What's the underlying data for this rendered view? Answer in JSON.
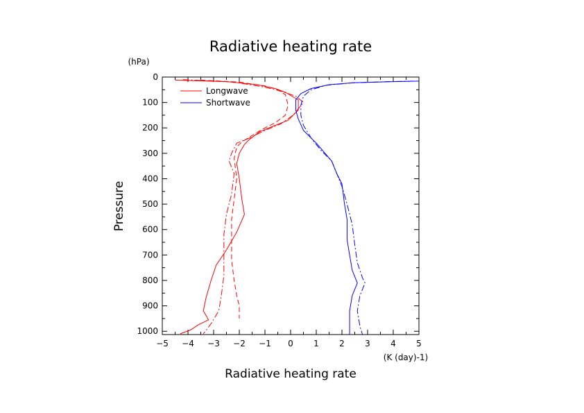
{
  "chart_data": {
    "type": "line",
    "title": "Radiative heating rate",
    "xlabel": "Radiative heating rate",
    "x_unit": "(K (day)-1)",
    "ylabel": "Pressure",
    "y_unit": "(hPa)",
    "xlim": [
      -5,
      5
    ],
    "ylim": [
      0,
      1013
    ],
    "y_inverted": true,
    "x_ticks": [
      -5,
      -4,
      -3,
      -2,
      -1,
      0,
      1,
      2,
      3,
      4,
      5
    ],
    "y_ticks": [
      0,
      100,
      200,
      300,
      400,
      500,
      600,
      700,
      800,
      900,
      1000
    ],
    "grid": false,
    "legend_position": "top-left",
    "legend": [
      {
        "label": "Longwave",
        "color": "#ff0000"
      },
      {
        "label": "Shortwave",
        "color": "#0000ff"
      }
    ],
    "series": [
      {
        "name": "Longwave",
        "group": "Longwave",
        "style": "solid",
        "color": "#ff0000",
        "points": [
          [
            -4.5,
            12
          ],
          [
            -2.5,
            18
          ],
          [
            -1.3,
            30
          ],
          [
            -0.6,
            45
          ],
          [
            -0.2,
            60
          ],
          [
            0.3,
            90
          ],
          [
            0.3,
            130
          ],
          [
            -0.1,
            170
          ],
          [
            -0.6,
            190
          ],
          [
            -1.2,
            215
          ],
          [
            -1.6,
            245
          ],
          [
            -1.8,
            265
          ],
          [
            -2.0,
            300
          ],
          [
            -2.1,
            340
          ],
          [
            -2.0,
            400
          ],
          [
            -1.9,
            480
          ],
          [
            -1.8,
            540
          ],
          [
            -2.1,
            610
          ],
          [
            -2.5,
            680
          ],
          [
            -2.9,
            740
          ],
          [
            -3.1,
            800
          ],
          [
            -3.3,
            870
          ],
          [
            -3.4,
            920
          ],
          [
            -3.2,
            955
          ],
          [
            -3.6,
            975
          ],
          [
            -3.9,
            995
          ],
          [
            -4.3,
            1010
          ]
        ]
      },
      {
        "name": "Longwave",
        "group": "Longwave",
        "style": "dashed",
        "color": "#ff0000",
        "points": [
          [
            -3.5,
            12
          ],
          [
            -2.0,
            20
          ],
          [
            -1.0,
            35
          ],
          [
            -0.5,
            50
          ],
          [
            -0.2,
            70
          ],
          [
            -0.1,
            110
          ],
          [
            -0.2,
            150
          ],
          [
            -0.6,
            180
          ],
          [
            -1.1,
            205
          ],
          [
            -1.5,
            230
          ],
          [
            -1.9,
            255
          ],
          [
            -2.1,
            275
          ],
          [
            -2.2,
            320
          ],
          [
            -2.1,
            400
          ],
          [
            -2.2,
            480
          ],
          [
            -2.3,
            560
          ],
          [
            -2.3,
            640
          ],
          [
            -2.3,
            720
          ],
          [
            -2.2,
            800
          ],
          [
            -2.1,
            860
          ],
          [
            -2.0,
            900
          ],
          [
            -2.0,
            950
          ]
        ]
      },
      {
        "name": "Longwave",
        "group": "Longwave",
        "style": "dashdot",
        "color": "#ff0000",
        "points": [
          [
            -4.2,
            10
          ],
          [
            -2.2,
            20
          ],
          [
            -1.0,
            40
          ],
          [
            -0.4,
            55
          ],
          [
            0.2,
            75
          ],
          [
            0.5,
            100
          ],
          [
            0.1,
            150
          ],
          [
            -0.4,
            185
          ],
          [
            -1.0,
            210
          ],
          [
            -1.6,
            240
          ],
          [
            -2.1,
            260
          ],
          [
            -2.3,
            300
          ],
          [
            -2.4,
            330
          ],
          [
            -2.2,
            380
          ],
          [
            -2.3,
            460
          ],
          [
            -2.5,
            540
          ],
          [
            -2.6,
            620
          ],
          [
            -2.6,
            700
          ],
          [
            -2.6,
            780
          ],
          [
            -2.7,
            860
          ],
          [
            -2.8,
            920
          ],
          [
            -3.1,
            970
          ],
          [
            -3.4,
            1010
          ]
        ]
      },
      {
        "name": "Shortwave",
        "group": "Shortwave",
        "style": "solid",
        "color": "#0000ff",
        "points": [
          [
            5.0,
            16
          ],
          [
            4.0,
            18
          ],
          [
            2.5,
            22
          ],
          [
            1.5,
            30
          ],
          [
            0.8,
            45
          ],
          [
            0.4,
            65
          ],
          [
            0.2,
            90
          ],
          [
            0.2,
            130
          ],
          [
            0.3,
            165
          ],
          [
            0.5,
            210
          ],
          [
            1.0,
            260
          ],
          [
            1.6,
            330
          ],
          [
            1.8,
            380
          ],
          [
            2.0,
            420
          ],
          [
            2.1,
            500
          ],
          [
            2.2,
            560
          ],
          [
            2.2,
            640
          ],
          [
            2.3,
            700
          ],
          [
            2.4,
            760
          ],
          [
            2.6,
            810
          ],
          [
            2.4,
            860
          ],
          [
            2.3,
            920
          ],
          [
            2.3,
            980
          ],
          [
            2.3,
            1013
          ]
        ]
      },
      {
        "name": "Shortwave",
        "group": "Shortwave",
        "style": "dashdot",
        "color": "#0000ff",
        "points": [
          [
            4.8,
            16
          ],
          [
            3.8,
            18
          ],
          [
            2.4,
            23
          ],
          [
            1.4,
            32
          ],
          [
            0.8,
            50
          ],
          [
            0.5,
            75
          ],
          [
            0.4,
            110
          ],
          [
            0.4,
            150
          ],
          [
            0.5,
            190
          ],
          [
            0.8,
            240
          ],
          [
            1.2,
            290
          ],
          [
            1.6,
            330
          ],
          [
            1.8,
            380
          ],
          [
            2.0,
            430
          ],
          [
            2.2,
            500
          ],
          [
            2.4,
            580
          ],
          [
            2.5,
            660
          ],
          [
            2.6,
            730
          ],
          [
            2.8,
            790
          ],
          [
            2.9,
            810
          ],
          [
            2.7,
            860
          ],
          [
            2.6,
            920
          ],
          [
            2.7,
            980
          ],
          [
            2.8,
            1013
          ]
        ]
      }
    ]
  }
}
